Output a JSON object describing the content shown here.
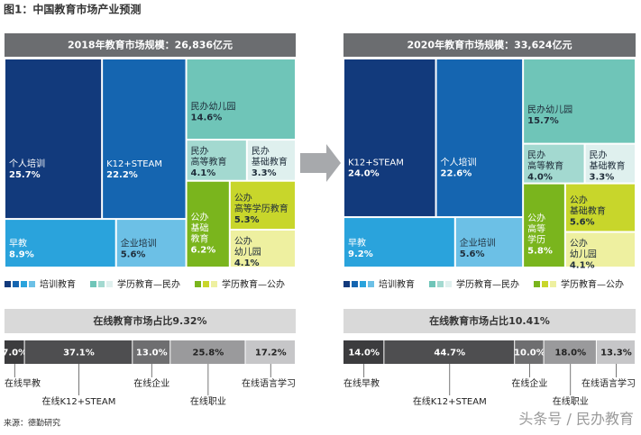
{
  "title": "图1：中国教育市场产业预测",
  "source": "来源：德勤研究",
  "watermark": "头条号 / 民办教育",
  "chart_data": [
    {
      "type": "treemap",
      "title": "2018年教育市场规模：26,836亿元",
      "items": [
        {
          "label_lines": [
            "个人培训"
          ],
          "value": 25.7,
          "value_label": "25.7%",
          "color": "#123a7c"
        },
        {
          "label_lines": [
            "K12+STEAM"
          ],
          "value": 22.2,
          "value_label": "22.2%",
          "color": "#1565b0"
        },
        {
          "label_lines": [
            "早教"
          ],
          "value": 8.9,
          "value_label": "8.9%",
          "color": "#2aa3dc"
        },
        {
          "label_lines": [
            "企业培训"
          ],
          "value": 5.6,
          "value_label": "5.6%",
          "color": "#6cc0e6"
        },
        {
          "label_lines": [
            "民办幼儿园"
          ],
          "value": 14.6,
          "value_label": "14.6%",
          "color": "#6fc5b8"
        },
        {
          "label_lines": [
            "民办",
            "高等教育"
          ],
          "value": 4.1,
          "value_label": "4.1%",
          "color": "#a3d9d0"
        },
        {
          "label_lines": [
            "民办",
            "基础教育"
          ],
          "value": 3.3,
          "value_label": "3.3%",
          "color": "#dff0ee"
        },
        {
          "label_lines": [
            "公办",
            "基础",
            "教育"
          ],
          "value": 6.2,
          "value_label": "6.2%",
          "color": "#7ab51d"
        },
        {
          "label_lines": [
            "公办",
            "高等学历教育"
          ],
          "value": 5.3,
          "value_label": "5.3%",
          "color": "#c8d62b"
        },
        {
          "label_lines": [
            "公办",
            "幼儿园"
          ],
          "value": 4.1,
          "value_label": "4.1%",
          "color": "#eef0a0"
        }
      ],
      "legend": [
        {
          "name": "培训教育",
          "colors": [
            "#123a7c",
            "#1565b0",
            "#2aa3dc",
            "#6cc0e6"
          ]
        },
        {
          "name": "学历教育—民办",
          "colors": [
            "#6fc5b8",
            "#a3d9d0",
            "#dff0ee"
          ]
        },
        {
          "name": "学历教育—公办",
          "colors": [
            "#7ab51d",
            "#c8d62b",
            "#eef0a0"
          ]
        }
      ]
    },
    {
      "type": "treemap",
      "title": "2020年教育市场规模：33,624亿元",
      "items": [
        {
          "label_lines": [
            "K12+STEAM"
          ],
          "value": 24.0,
          "value_label": "24.0%",
          "color": "#123a7c"
        },
        {
          "label_lines": [
            "个人培训"
          ],
          "value": 22.6,
          "value_label": "22.6%",
          "color": "#1565b0"
        },
        {
          "label_lines": [
            "早教"
          ],
          "value": 9.2,
          "value_label": "9.2%",
          "color": "#2aa3dc"
        },
        {
          "label_lines": [
            "企业培训"
          ],
          "value": 5.6,
          "value_label": "5.6%",
          "color": "#6cc0e6"
        },
        {
          "label_lines": [
            "民办幼儿园"
          ],
          "value": 15.7,
          "value_label": "15.7%",
          "color": "#6fc5b8"
        },
        {
          "label_lines": [
            "民办",
            "高等教育"
          ],
          "value": 4.0,
          "value_label": "4.0%",
          "color": "#a3d9d0"
        },
        {
          "label_lines": [
            "民办",
            "基础教育"
          ],
          "value": 3.3,
          "value_label": "3.3%",
          "color": "#dff0ee"
        },
        {
          "label_lines": [
            "公办",
            "高等",
            "学历"
          ],
          "value": 5.8,
          "value_label": "5.8%",
          "color": "#7ab51d"
        },
        {
          "label_lines": [
            "公办",
            "基础教育"
          ],
          "value": 5.6,
          "value_label": "5.6%",
          "color": "#c8d62b"
        },
        {
          "label_lines": [
            "公办",
            "幼儿园"
          ],
          "value": 4.1,
          "value_label": "4.1%",
          "color": "#eef0a0"
        }
      ],
      "legend": [
        {
          "name": "培训教育",
          "colors": [
            "#123a7c",
            "#1565b0",
            "#2aa3dc",
            "#6cc0e6"
          ]
        },
        {
          "name": "学历教育—民办",
          "colors": [
            "#6fc5b8",
            "#a3d9d0",
            "#dff0ee"
          ]
        },
        {
          "name": "学历教育—公办",
          "colors": [
            "#7ab51d",
            "#c8d62b",
            "#eef0a0"
          ]
        }
      ]
    },
    {
      "type": "stacked_bar",
      "title": "在线教育市场占比9.32%",
      "categories": [
        "在线早教",
        "在线K12+STEAM",
        "在线企业",
        "在线职业",
        "在线语言学习"
      ],
      "values": [
        7.0,
        37.1,
        13.0,
        25.8,
        17.2
      ],
      "value_labels": [
        "7.0%",
        "37.1%",
        "13.0%",
        "25.8%",
        "17.2%"
      ],
      "colors": [
        "#3c3c3e",
        "#4e4e50",
        "#6e6e70",
        "#9a9a9c",
        "#c6c6c8"
      ]
    },
    {
      "type": "stacked_bar",
      "title": "在线教育市场占比10.41%",
      "categories": [
        "在线早教",
        "在线K12+STEAM",
        "在线企业",
        "在线职业",
        "在线语言学习"
      ],
      "values": [
        14.0,
        44.7,
        10.0,
        18.0,
        13.3
      ],
      "value_labels": [
        "14.0%",
        "44.7%",
        "10.0%",
        "18.0%",
        "13.3%"
      ],
      "colors": [
        "#3c3c3e",
        "#4e4e50",
        "#6e6e70",
        "#9a9a9c",
        "#c6c6c8"
      ]
    }
  ]
}
